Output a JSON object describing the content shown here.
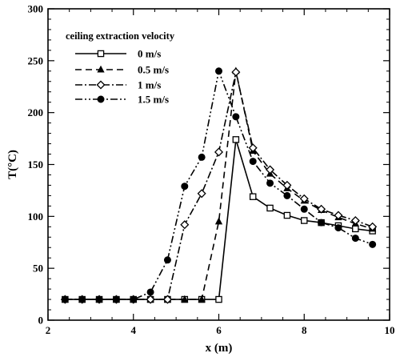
{
  "chart_data": {
    "type": "line",
    "xlabel": "x (m)",
    "ylabel": "T(°C)",
    "xlim": [
      2,
      10
    ],
    "ylim": [
      0,
      300
    ],
    "xticks": [
      2,
      4,
      6,
      8,
      10
    ],
    "yticks": [
      0,
      50,
      100,
      150,
      200,
      250,
      300
    ],
    "xtick_labels": [
      "2",
      "4",
      "6",
      "8",
      "10"
    ],
    "ytick_labels": [
      "0",
      "50",
      "100",
      "150",
      "200",
      "250",
      "300"
    ],
    "grid": false,
    "legend": {
      "title": "ceiling extraction velocity",
      "placement": "top-left"
    },
    "series": [
      {
        "name": "0 m/s",
        "line_style": "solid",
        "marker": "square-open",
        "x": [
          2.4,
          2.8,
          3.2,
          3.6,
          4.0,
          4.4,
          4.8,
          5.2,
          5.6,
          6.0,
          6.4,
          6.8,
          7.2,
          7.6,
          8.0,
          8.4,
          8.8,
          9.2,
          9.6
        ],
        "y": [
          20,
          20,
          20,
          20,
          20,
          20,
          20,
          20,
          20,
          20,
          174,
          119,
          108,
          101,
          96,
          94,
          91,
          88,
          86
        ]
      },
      {
        "name": "0.5 m/s",
        "line_style": "dashed",
        "marker": "triangle-filled",
        "x": [
          2.4,
          2.8,
          3.2,
          3.6,
          4.0,
          4.4,
          4.8,
          5.2,
          5.6,
          6.0,
          6.4,
          6.8,
          7.2,
          7.6,
          8.0,
          8.4,
          8.8,
          9.2,
          9.6
        ],
        "y": [
          20,
          20,
          20,
          20,
          20,
          20,
          20,
          20,
          20,
          95,
          240,
          163,
          141,
          127,
          115,
          106,
          99,
          93,
          88
        ]
      },
      {
        "name": "1 m/s",
        "line_style": "dash-dot",
        "marker": "diamond-open",
        "x": [
          2.4,
          2.8,
          3.2,
          3.6,
          4.0,
          4.4,
          4.8,
          5.2,
          5.6,
          6.0,
          6.4,
          6.8,
          7.2,
          7.6,
          8.0,
          8.4,
          8.8,
          9.2,
          9.6
        ],
        "y": [
          20,
          20,
          20,
          20,
          20,
          20,
          20,
          92,
          122,
          162,
          239,
          166,
          145,
          130,
          117,
          107,
          101,
          96,
          90
        ]
      },
      {
        "name": "1.5 m/s",
        "line_style": "dash-dot-dot",
        "marker": "circle-filled",
        "x": [
          2.4,
          2.8,
          3.2,
          3.6,
          4.0,
          4.4,
          4.8,
          5.2,
          5.6,
          6.0,
          6.4,
          6.8,
          7.2,
          7.6,
          8.0,
          8.4,
          8.8,
          9.2,
          9.6
        ],
        "y": [
          20,
          20,
          20,
          20,
          20,
          27,
          58,
          129,
          157,
          240,
          196,
          153,
          132,
          120,
          107,
          94,
          89,
          79,
          73
        ]
      }
    ]
  }
}
